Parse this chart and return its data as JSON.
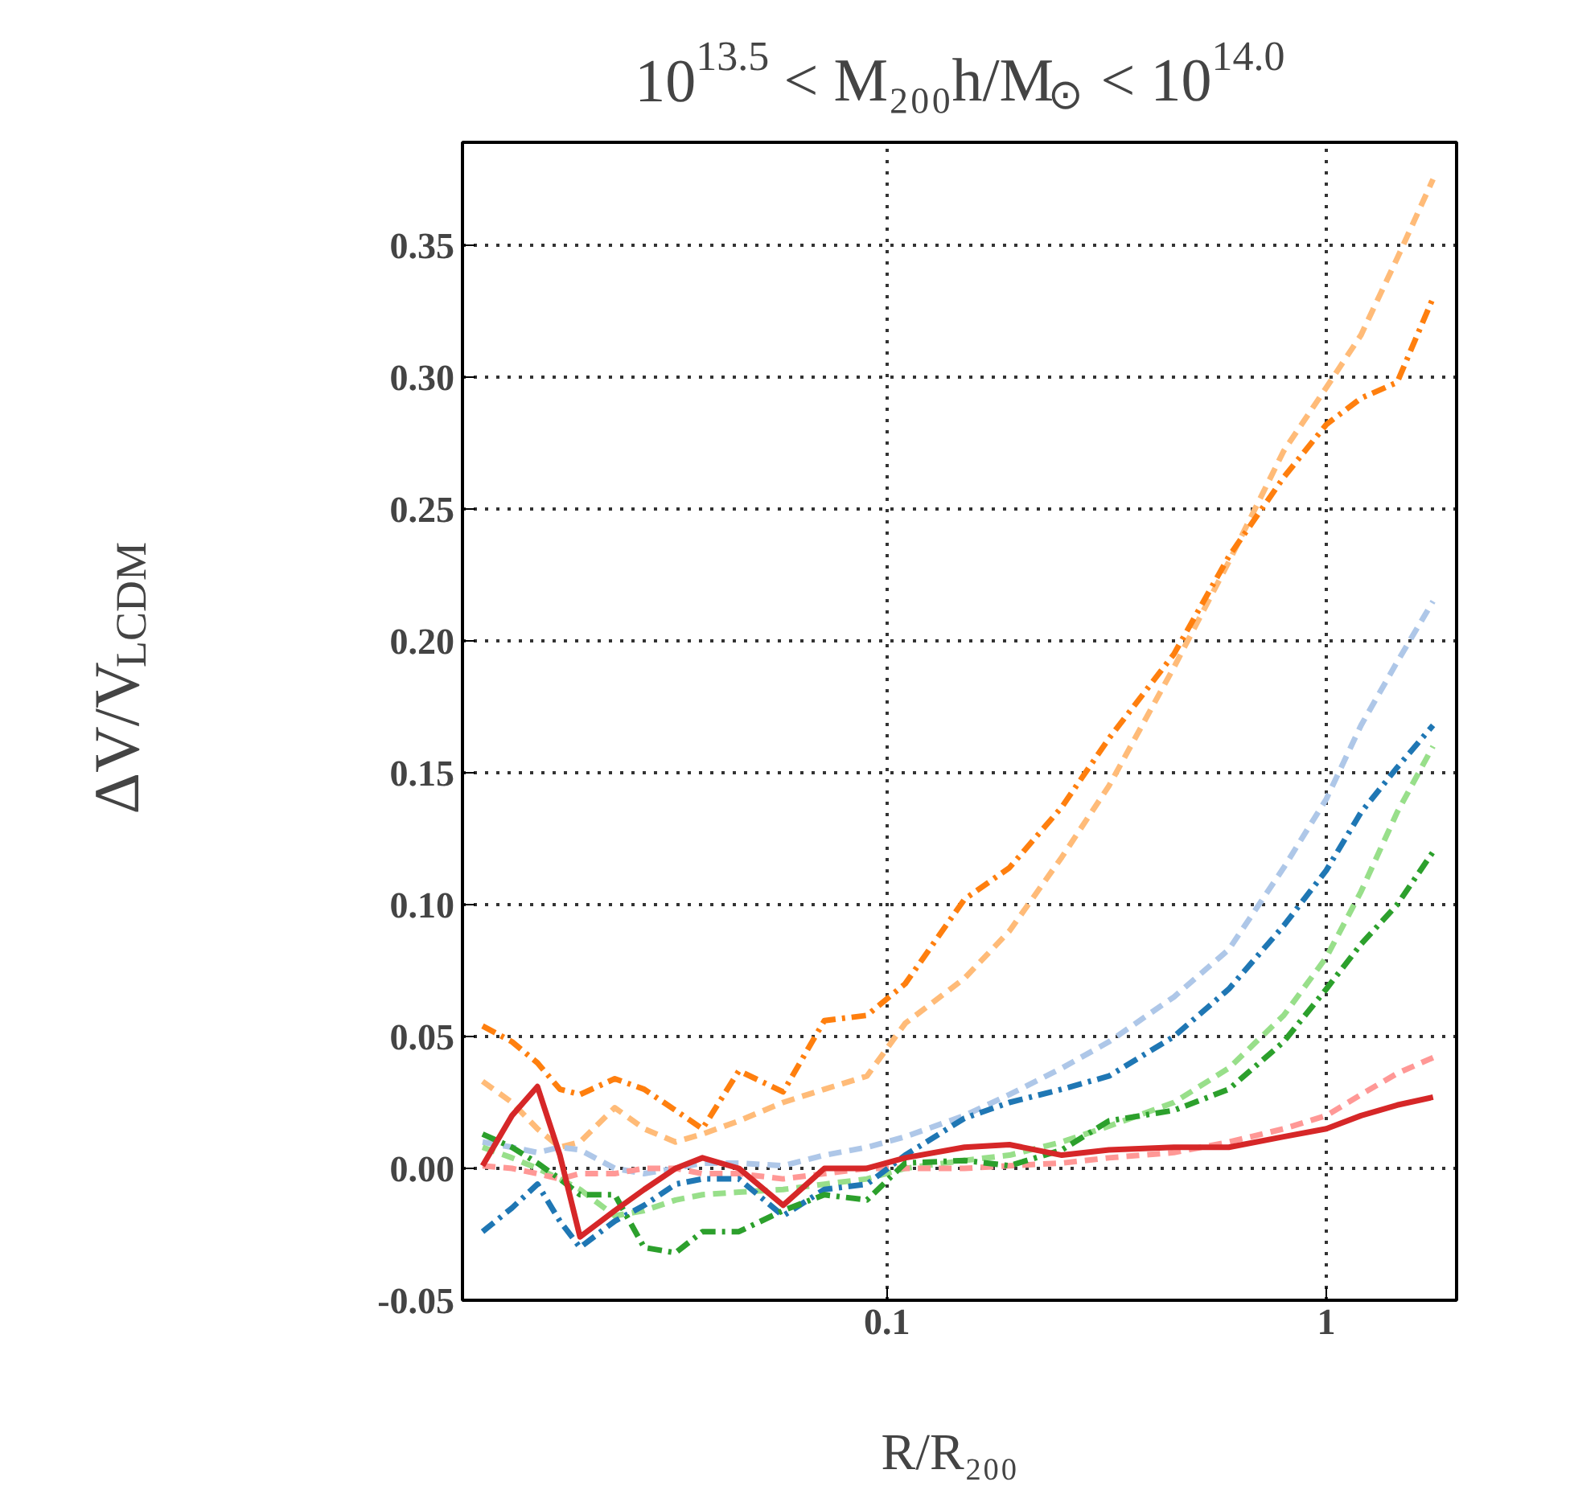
{
  "chart_data": {
    "type": "line",
    "title": "10$^{13.5}$ < M₂₀₀h/M$_{⊙}$ < 10$^{14.0}$",
    "xlabel": "R/R₂₀₀",
    "ylabel": "ΔV/V$_{LCDM}$",
    "log": "x",
    "grid": true,
    "xlim": [
      0.0108,
      1.98
    ],
    "ylim": [
      -0.05,
      0.389
    ],
    "xticks": [
      0.1,
      1
    ],
    "yticks": [
      {
        "value": -0.05,
        "label": "-0.05"
      },
      {
        "value": 0.0,
        "label": "0.00"
      },
      {
        "value": 0.05,
        "label": "0.05"
      },
      {
        "value": 0.1,
        "label": "0.10"
      },
      {
        "value": 0.15,
        "label": "0.15"
      },
      {
        "value": 0.2,
        "label": "0.20"
      },
      {
        "value": 0.25,
        "label": "0.25"
      },
      {
        "value": 0.3,
        "label": "0.30"
      },
      {
        "value": 0.35,
        "label": "0.35"
      }
    ],
    "x": [
      0.012,
      0.014,
      0.016,
      0.018,
      0.02,
      0.024,
      0.028,
      0.033,
      0.038,
      0.046,
      0.058,
      0.072,
      0.09,
      0.11,
      0.15,
      0.19,
      0.25,
      0.32,
      0.45,
      0.6,
      0.8,
      1.0,
      1.2,
      1.45,
      1.75
    ],
    "series": [
      {
        "color": "#ffbb78",
        "line_style": "dashed",
        "values": [
          0.033,
          0.025,
          0.015,
          0.008,
          0.01,
          0.023,
          0.015,
          0.01,
          0.013,
          0.018,
          0.025,
          0.03,
          0.035,
          0.055,
          0.072,
          0.09,
          0.118,
          0.145,
          0.19,
          0.23,
          0.272,
          0.296,
          0.316,
          0.345,
          0.375
        ]
      },
      {
        "color": "#aec7e8",
        "line_style": "dashed",
        "values": [
          0.01,
          0.008,
          0.006,
          0.008,
          0.007,
          0.0,
          -0.002,
          0.0,
          0.002,
          0.002,
          0.001,
          0.005,
          0.008,
          0.012,
          0.02,
          0.028,
          0.038,
          0.048,
          0.065,
          0.083,
          0.114,
          0.14,
          0.168,
          0.192,
          0.215
        ]
      },
      {
        "color": "#98df8a",
        "line_style": "dashed",
        "values": [
          0.008,
          0.004,
          0.0,
          -0.004,
          -0.008,
          -0.018,
          -0.016,
          -0.012,
          -0.01,
          -0.009,
          -0.008,
          -0.006,
          -0.004,
          0.0,
          0.003,
          0.005,
          0.01,
          0.016,
          0.025,
          0.038,
          0.058,
          0.08,
          0.105,
          0.135,
          0.16
        ]
      },
      {
        "color": "#ff9896",
        "line_style": "dashed",
        "values": [
          0.001,
          0.0,
          -0.002,
          -0.004,
          -0.002,
          -0.002,
          0.0,
          0.0,
          -0.002,
          -0.002,
          -0.004,
          -0.002,
          0.0,
          0.0,
          0.0,
          0.001,
          0.002,
          0.004,
          0.006,
          0.01,
          0.015,
          0.02,
          0.028,
          0.036,
          0.042
        ]
      },
      {
        "color": "#ff7f0e",
        "line_style": "dashdot",
        "values": [
          0.054,
          0.048,
          0.04,
          0.03,
          0.028,
          0.034,
          0.03,
          0.022,
          0.015,
          0.037,
          0.029,
          0.056,
          0.058,
          0.07,
          0.102,
          0.114,
          0.137,
          0.163,
          0.195,
          0.232,
          0.262,
          0.282,
          0.292,
          0.298,
          0.33
        ]
      },
      {
        "color": "#1f77b4",
        "line_style": "dashdot",
        "values": [
          -0.024,
          -0.015,
          -0.006,
          -0.02,
          -0.03,
          -0.02,
          -0.014,
          -0.006,
          -0.004,
          -0.004,
          -0.018,
          -0.008,
          -0.006,
          0.005,
          0.019,
          0.025,
          0.03,
          0.035,
          0.05,
          0.068,
          0.092,
          0.113,
          0.135,
          0.152,
          0.168
        ]
      },
      {
        "color": "#2ca02c",
        "line_style": "dashdot",
        "values": [
          0.013,
          0.008,
          0.002,
          -0.004,
          -0.01,
          -0.01,
          -0.03,
          -0.032,
          -0.024,
          -0.024,
          -0.016,
          -0.01,
          -0.012,
          0.002,
          0.003,
          0.001,
          0.007,
          0.018,
          0.022,
          0.03,
          0.048,
          0.068,
          0.085,
          0.1,
          0.12
        ]
      },
      {
        "color": "#d62728",
        "line_style": "solid",
        "values": [
          0.001,
          0.02,
          0.031,
          0.005,
          -0.026,
          -0.016,
          -0.008,
          0.0,
          0.004,
          0.0,
          -0.014,
          0.0,
          0.0,
          0.004,
          0.008,
          0.009,
          0.005,
          0.007,
          0.008,
          0.008,
          0.012,
          0.015,
          0.02,
          0.024,
          0.027
        ]
      }
    ]
  }
}
